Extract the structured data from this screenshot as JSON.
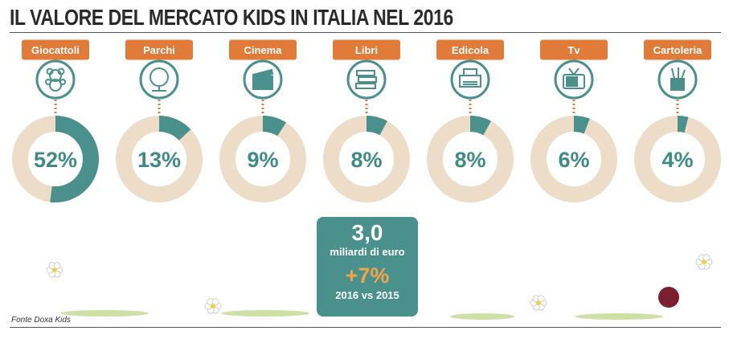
{
  "header": {
    "title": "IL VALORE DEL MERCATO KIDS IN ITALIA NEL 2016"
  },
  "footer": {
    "source": "Fonte Doxa Kids"
  },
  "summary": {
    "total_value": "3,0",
    "total_unit": "miliardi di euro",
    "growth": "+7%",
    "comparison": "2016 vs 2015"
  },
  "colors": {
    "label_bg": "#e07b39",
    "ring_bg": "#ecdcc8",
    "ring_fg": "#4a908d",
    "icon_ring": "#4a908d",
    "connector": "#e07b39"
  },
  "chart_data": {
    "type": "pie",
    "title": "IL VALORE DEL MERCATO KIDS IN ITALIA NEL 2016",
    "categories": [
      "Giocattoli",
      "Parchi",
      "Cinema",
      "Libri",
      "Edicola",
      "Tv",
      "Cartoleria"
    ],
    "values": [
      52,
      13,
      9,
      8,
      8,
      6,
      4
    ],
    "value_labels": [
      "52%",
      "13%",
      "9%",
      "8%",
      "8%",
      "6%",
      "4%"
    ],
    "icons": [
      "teddy-bear-icon",
      "tree-icon",
      "clapperboard-icon",
      "books-icon",
      "printer-icon",
      "tv-icon",
      "pencil-cup-icon"
    ]
  }
}
